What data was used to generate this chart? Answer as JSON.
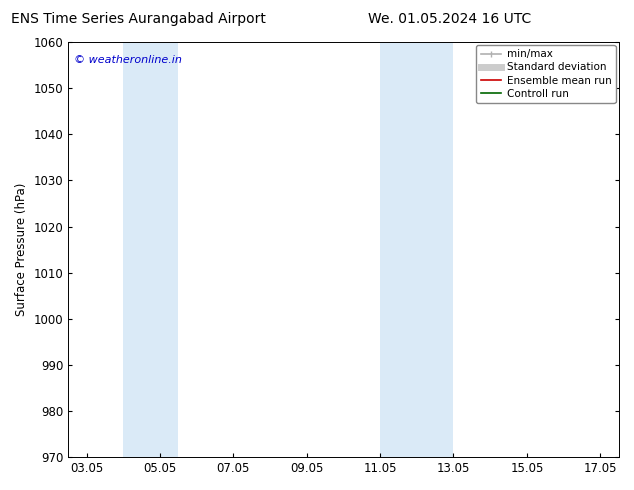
{
  "title_left": "ENS Time Series Aurangabad Airport",
  "title_right": "We. 01.05.2024 16 UTC",
  "ylabel": "Surface Pressure (hPa)",
  "ylim": [
    970,
    1060
  ],
  "yticks": [
    970,
    980,
    990,
    1000,
    1010,
    1020,
    1030,
    1040,
    1050,
    1060
  ],
  "xtick_labels": [
    "03.05",
    "05.05",
    "07.05",
    "09.05",
    "11.05",
    "13.05",
    "15.05",
    "17.05"
  ],
  "xtick_positions": [
    3,
    5,
    7,
    9,
    11,
    13,
    15,
    17
  ],
  "xlim": [
    2.5,
    17.5
  ],
  "shaded_bands": [
    {
      "x_start": 4.0,
      "x_end": 5.5
    },
    {
      "x_start": 11.0,
      "x_end": 13.0
    }
  ],
  "shaded_color": "#daeaf7",
  "watermark_text": "© weatheronline.in",
  "watermark_color": "#0000cc",
  "legend_entries": [
    {
      "label": "min/max",
      "color": "#b0b0b0",
      "lw": 1.2
    },
    {
      "label": "Standard deviation",
      "color": "#cccccc",
      "lw": 5
    },
    {
      "label": "Ensemble mean run",
      "color": "#cc0000",
      "lw": 1.2
    },
    {
      "label": "Controll run",
      "color": "#006600",
      "lw": 1.2
    }
  ],
  "background_color": "#ffffff",
  "spine_color": "#000000",
  "title_fontsize": 10,
  "tick_fontsize": 8.5,
  "ylabel_fontsize": 8.5,
  "watermark_fontsize": 8,
  "legend_fontsize": 7.5
}
